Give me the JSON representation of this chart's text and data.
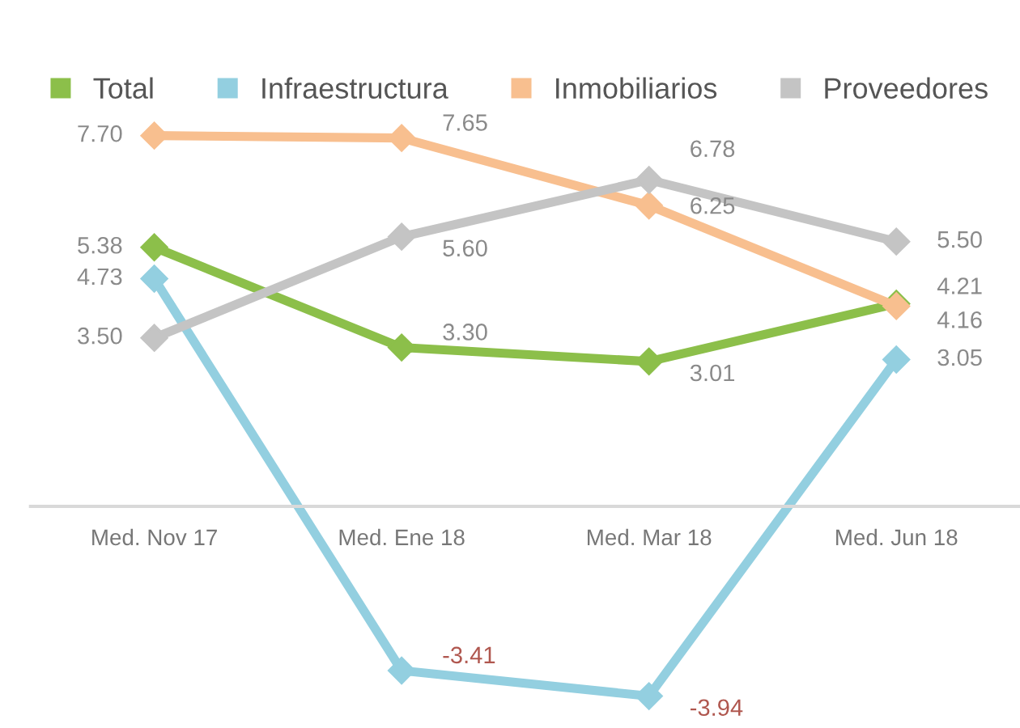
{
  "chart_data": {
    "type": "line",
    "categories": [
      "Med. Nov 17",
      "Med. Ene 18",
      "Med. Mar 18",
      "Med. Jun 18"
    ],
    "series": [
      {
        "name": "Total",
        "color": "#8cbf4a",
        "values": [
          5.38,
          3.3,
          3.01,
          4.21
        ],
        "value_labels": [
          "5.38",
          "3.30",
          "3.01",
          "4.21"
        ]
      },
      {
        "name": "Infraestructura",
        "color": "#93cfe0",
        "values": [
          4.73,
          -3.41,
          -3.94,
          3.05
        ],
        "value_labels": [
          "4.73",
          "-3.41",
          "-3.94",
          "3.05"
        ]
      },
      {
        "name": "Inmobiliarios",
        "color": "#f8bf8f",
        "values": [
          7.7,
          7.65,
          6.25,
          4.16
        ],
        "value_labels": [
          "7.70",
          "7.65",
          "6.25",
          "4.16"
        ]
      },
      {
        "name": "Proveedores",
        "color": "#c4c4c4",
        "values": [
          3.5,
          5.6,
          6.78,
          5.5
        ],
        "value_labels": [
          "3.50",
          "5.60",
          "6.78",
          "5.50"
        ]
      }
    ],
    "marker": "diamond",
    "legend": "top"
  }
}
